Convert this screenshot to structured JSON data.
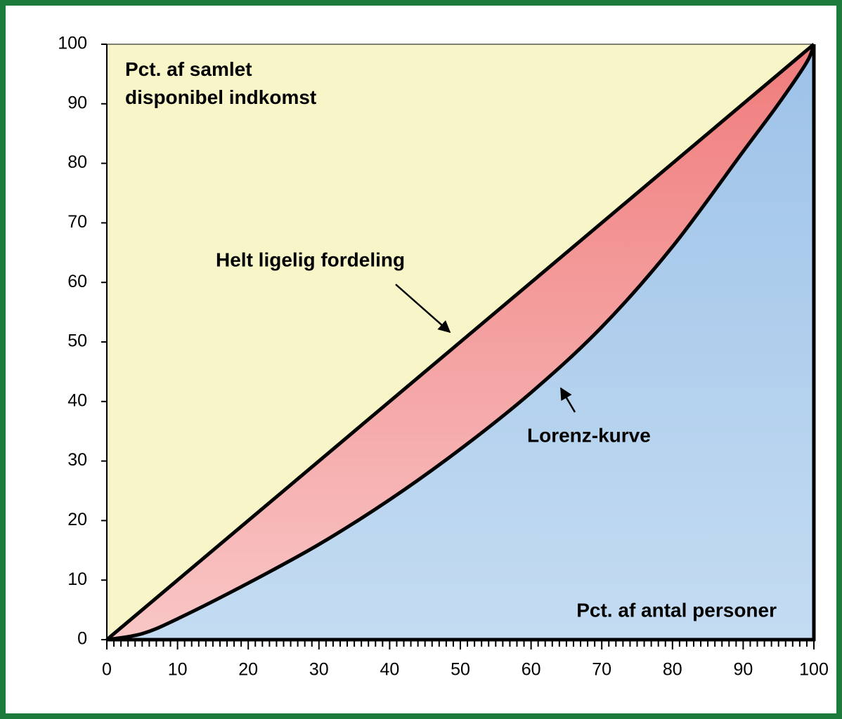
{
  "chart_data": {
    "type": "line",
    "ylabel": [
      "Pct. af samlet",
      "disponibel indkomst"
    ],
    "xlabel": "Pct. af antal personer",
    "annotations": [
      "Helt ligelig fordeling",
      "Lorenz-kurve"
    ],
    "series": [
      {
        "name": "Helt ligelig fordeling",
        "color": "#000000",
        "x": [
          0,
          100
        ],
        "values": [
          0,
          100
        ]
      },
      {
        "name": "Lorenz-kurve",
        "color": "#000000",
        "x": [
          0,
          5,
          10,
          20,
          30,
          40,
          50,
          60,
          70,
          80,
          90,
          95,
          99,
          100
        ],
        "values": [
          0,
          1,
          3.5,
          9.5,
          16,
          23.5,
          32,
          41.5,
          52.5,
          66,
          82,
          90,
          97,
          100
        ]
      }
    ],
    "xlim": [
      0,
      100
    ],
    "xticks": [
      0,
      10,
      20,
      30,
      40,
      50,
      60,
      70,
      80,
      90,
      100
    ],
    "ylim": [
      0,
      100
    ],
    "yticks": [
      0,
      10,
      20,
      30,
      40,
      50,
      60,
      70,
      80,
      90,
      100
    ],
    "xminorticks": true,
    "fill_colors": {
      "above": "#f8f6c8",
      "between": [
        "#f07c7c",
        "#f9c6c6"
      ],
      "below": [
        "#9dc2e8",
        "#c4dcf2"
      ]
    },
    "frame_color": "#1b7b3b"
  }
}
